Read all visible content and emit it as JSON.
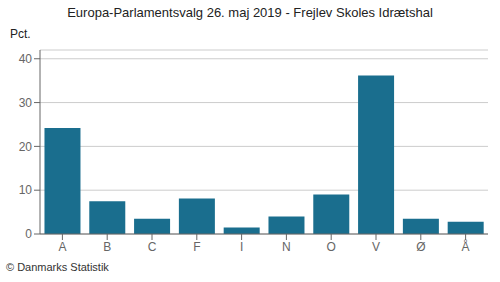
{
  "chart_data": {
    "type": "bar",
    "title": "Europa-Parlamentsvalg 26. maj 2019 - Frejlev Skoles Idrætshal",
    "y_label": "Pct.",
    "annotations": [
      "© Danmarks Statistik"
    ],
    "categories": [
      "A",
      "B",
      "C",
      "F",
      "I",
      "N",
      "O",
      "V",
      "Ø",
      "Å"
    ],
    "values": [
      24.2,
      7.5,
      3.5,
      8.1,
      1.5,
      4.0,
      9.0,
      36.2,
      3.5,
      2.8
    ],
    "color": "#1a6e8e",
    "ylim": [
      0,
      42
    ],
    "yticks": [
      0,
      10,
      20,
      30,
      40
    ],
    "grid": true
  }
}
